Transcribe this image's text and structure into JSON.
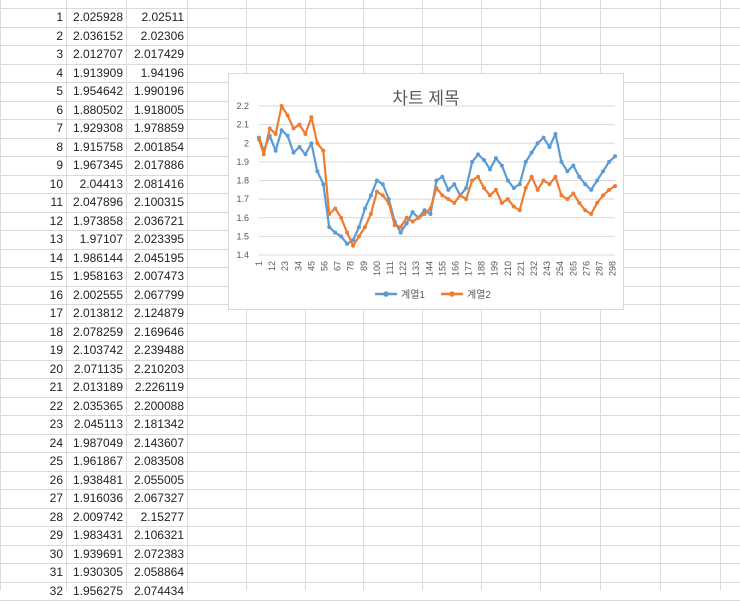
{
  "rows": [
    {
      "n": "1",
      "a": "2.025928",
      "b": "2.02511"
    },
    {
      "n": "2",
      "a": "2.036152",
      "b": "2.02306"
    },
    {
      "n": "3",
      "a": "2.012707",
      "b": "2.017429"
    },
    {
      "n": "4",
      "a": "1.913909",
      "b": "1.94196"
    },
    {
      "n": "5",
      "a": "1.954642",
      "b": "1.990196"
    },
    {
      "n": "6",
      "a": "1.880502",
      "b": "1.918005"
    },
    {
      "n": "7",
      "a": "1.929308",
      "b": "1.978859"
    },
    {
      "n": "8",
      "a": "1.915758",
      "b": "2.001854"
    },
    {
      "n": "9",
      "a": "1.967345",
      "b": "2.017886"
    },
    {
      "n": "10",
      "a": "2.04413",
      "b": "2.081416"
    },
    {
      "n": "11",
      "a": "2.047896",
      "b": "2.100315"
    },
    {
      "n": "12",
      "a": "1.973858",
      "b": "2.036721"
    },
    {
      "n": "13",
      "a": "1.97107",
      "b": "2.023395"
    },
    {
      "n": "14",
      "a": "1.986144",
      "b": "2.045195"
    },
    {
      "n": "15",
      "a": "1.958163",
      "b": "2.007473"
    },
    {
      "n": "16",
      "a": "2.002555",
      "b": "2.067799"
    },
    {
      "n": "17",
      "a": "2.013812",
      "b": "2.124879"
    },
    {
      "n": "18",
      "a": "2.078259",
      "b": "2.169646"
    },
    {
      "n": "19",
      "a": "2.103742",
      "b": "2.239488"
    },
    {
      "n": "20",
      "a": "2.071135",
      "b": "2.210203"
    },
    {
      "n": "21",
      "a": "2.013189",
      "b": "2.226119"
    },
    {
      "n": "22",
      "a": "2.035365",
      "b": "2.200088"
    },
    {
      "n": "23",
      "a": "2.045113",
      "b": "2.181342"
    },
    {
      "n": "24",
      "a": "1.987049",
      "b": "2.143607"
    },
    {
      "n": "25",
      "a": "1.961867",
      "b": "2.083508"
    },
    {
      "n": "26",
      "a": "1.938481",
      "b": "2.055005"
    },
    {
      "n": "27",
      "a": "1.916036",
      "b": "2.067327"
    },
    {
      "n": "28",
      "a": "2.009742",
      "b": "2.15277"
    },
    {
      "n": "29",
      "a": "1.983431",
      "b": "2.106321"
    },
    {
      "n": "30",
      "a": "1.939691",
      "b": "2.072383"
    },
    {
      "n": "31",
      "a": "1.930305",
      "b": "2.058864"
    },
    {
      "n": "32",
      "a": "1.956275",
      "b": "2.074434"
    }
  ],
  "chart_data": {
    "type": "line",
    "title": "차트 제목",
    "xlabel": "",
    "ylabel": "",
    "ylim": [
      1.4,
      2.2
    ],
    "yticks": [
      "1.4",
      "1.5",
      "1.6",
      "1.7",
      "1.8",
      "1.9",
      "2",
      "2.1",
      "2.2"
    ],
    "xticks": [
      "1",
      "12",
      "23",
      "34",
      "45",
      "56",
      "67",
      "78",
      "89",
      "100",
      "111",
      "122",
      "133",
      "144",
      "155",
      "166",
      "177",
      "188",
      "199",
      "210",
      "221",
      "232",
      "243",
      "254",
      "265",
      "276",
      "287",
      "298"
    ],
    "x_range": [
      1,
      300
    ],
    "grid": "horizontal",
    "legend_position": "bottom",
    "series": [
      {
        "name": "계열1",
        "color": "#5B9BD5",
        "x": [
          1,
          5,
          10,
          15,
          20,
          25,
          30,
          35,
          40,
          45,
          50,
          55,
          60,
          65,
          70,
          75,
          80,
          85,
          90,
          95,
          100,
          105,
          110,
          115,
          120,
          125,
          130,
          135,
          140,
          145,
          150,
          155,
          160,
          165,
          170,
          175,
          180,
          185,
          190,
          195,
          200,
          205,
          210,
          215,
          220,
          225,
          230,
          235,
          240,
          245,
          250,
          255,
          260,
          265,
          270,
          275,
          280,
          285,
          290,
          295,
          300
        ],
        "values": [
          2.03,
          1.96,
          2.04,
          1.96,
          2.07,
          2.04,
          1.95,
          1.98,
          1.94,
          2.0,
          1.85,
          1.78,
          1.55,
          1.52,
          1.5,
          1.46,
          1.48,
          1.55,
          1.65,
          1.72,
          1.8,
          1.78,
          1.7,
          1.58,
          1.52,
          1.57,
          1.63,
          1.6,
          1.64,
          1.62,
          1.8,
          1.82,
          1.75,
          1.78,
          1.72,
          1.76,
          1.9,
          1.94,
          1.91,
          1.86,
          1.92,
          1.88,
          1.8,
          1.76,
          1.78,
          1.9,
          1.95,
          2.0,
          2.03,
          1.98,
          2.05,
          1.9,
          1.85,
          1.88,
          1.82,
          1.78,
          1.75,
          1.8,
          1.85,
          1.9,
          1.93
        ]
      },
      {
        "name": "계열2",
        "color": "#ED7D31",
        "x": [
          1,
          5,
          10,
          15,
          20,
          25,
          30,
          35,
          40,
          45,
          50,
          55,
          60,
          65,
          70,
          75,
          80,
          85,
          90,
          95,
          100,
          105,
          110,
          115,
          120,
          125,
          130,
          135,
          140,
          145,
          150,
          155,
          160,
          165,
          170,
          175,
          180,
          185,
          190,
          195,
          200,
          205,
          210,
          215,
          220,
          225,
          230,
          235,
          240,
          245,
          250,
          255,
          260,
          265,
          270,
          275,
          280,
          285,
          290,
          295,
          300
        ],
        "values": [
          2.02,
          1.94,
          2.08,
          2.05,
          2.2,
          2.15,
          2.08,
          2.1,
          2.05,
          2.14,
          2.0,
          1.96,
          1.62,
          1.65,
          1.6,
          1.52,
          1.45,
          1.5,
          1.55,
          1.62,
          1.74,
          1.72,
          1.68,
          1.56,
          1.55,
          1.6,
          1.58,
          1.6,
          1.62,
          1.65,
          1.76,
          1.72,
          1.7,
          1.68,
          1.72,
          1.7,
          1.8,
          1.82,
          1.76,
          1.72,
          1.75,
          1.68,
          1.7,
          1.66,
          1.64,
          1.76,
          1.82,
          1.75,
          1.8,
          1.78,
          1.82,
          1.72,
          1.7,
          1.73,
          1.68,
          1.64,
          1.62,
          1.68,
          1.72,
          1.75,
          1.77
        ]
      }
    ]
  }
}
